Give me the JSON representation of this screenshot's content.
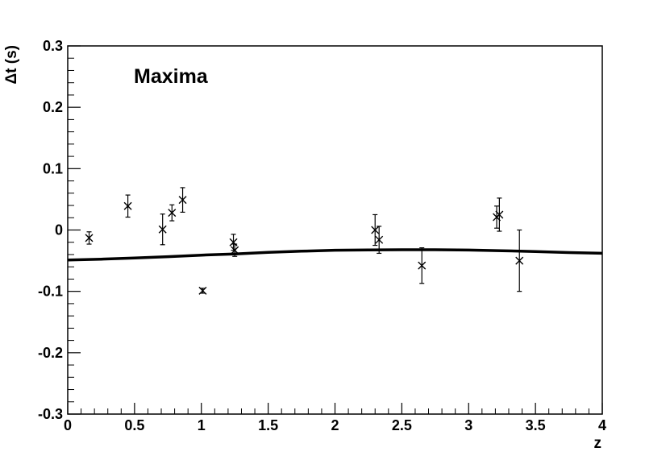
{
  "chart_data": {
    "type": "scatter",
    "title": "Maxima",
    "xlabel": "z",
    "ylabel": "Δt (s)",
    "xlim": [
      0,
      4
    ],
    "ylim": [
      -0.3,
      0.3
    ],
    "x_ticks": [
      0,
      0.5,
      1,
      1.5,
      2,
      2.5,
      3,
      3.5,
      4
    ],
    "x_tick_labels": [
      "0",
      "0.5",
      "1",
      "1.5",
      "2",
      "2.5",
      "3",
      "3.5",
      "4"
    ],
    "y_ticks": [
      -0.3,
      -0.2,
      -0.1,
      0,
      0.1,
      0.2,
      0.3
    ],
    "y_tick_labels": [
      "-0.3",
      "-0.2",
      "-0.1",
      "0",
      "0.1",
      "0.2",
      "0.3"
    ],
    "grid": false,
    "series": [
      {
        "marker": "x",
        "color": "#000000",
        "points": [
          {
            "x": 0.16,
            "y": -0.013,
            "err": 0.01
          },
          {
            "x": 0.45,
            "y": 0.039,
            "err": 0.018
          },
          {
            "x": 0.71,
            "y": 0.001,
            "err": 0.025
          },
          {
            "x": 0.78,
            "y": 0.028,
            "err": 0.013
          },
          {
            "x": 0.86,
            "y": 0.049,
            "err": 0.02
          },
          {
            "x": 1.01,
            "y": -0.099,
            "err": 0.004
          },
          {
            "x": 1.24,
            "y": -0.02,
            "err": 0.013
          },
          {
            "x": 1.25,
            "y": -0.033,
            "err": 0.01
          },
          {
            "x": 2.3,
            "y": 0.0,
            "err": 0.025
          },
          {
            "x": 2.33,
            "y": -0.016,
            "err": 0.022
          },
          {
            "x": 2.65,
            "y": -0.058,
            "err": 0.029
          },
          {
            "x": 3.21,
            "y": 0.021,
            "err": 0.018
          },
          {
            "x": 3.23,
            "y": 0.025,
            "err": 0.027
          },
          {
            "x": 3.38,
            "y": -0.05,
            "err": 0.05
          }
        ]
      },
      {
        "type": "line",
        "color": "#000000",
        "x": [
          0.0,
          0.25,
          0.5,
          0.75,
          1.0,
          1.25,
          1.5,
          1.75,
          2.0,
          2.25,
          2.5,
          2.75,
          3.0,
          3.25,
          3.5,
          3.75,
          4.0
        ],
        "y": [
          -0.049,
          -0.0475,
          -0.0455,
          -0.0435,
          -0.041,
          -0.039,
          -0.0365,
          -0.0345,
          -0.033,
          -0.0325,
          -0.0322,
          -0.0322,
          -0.0327,
          -0.0337,
          -0.0352,
          -0.0367,
          -0.038
        ]
      }
    ]
  }
}
